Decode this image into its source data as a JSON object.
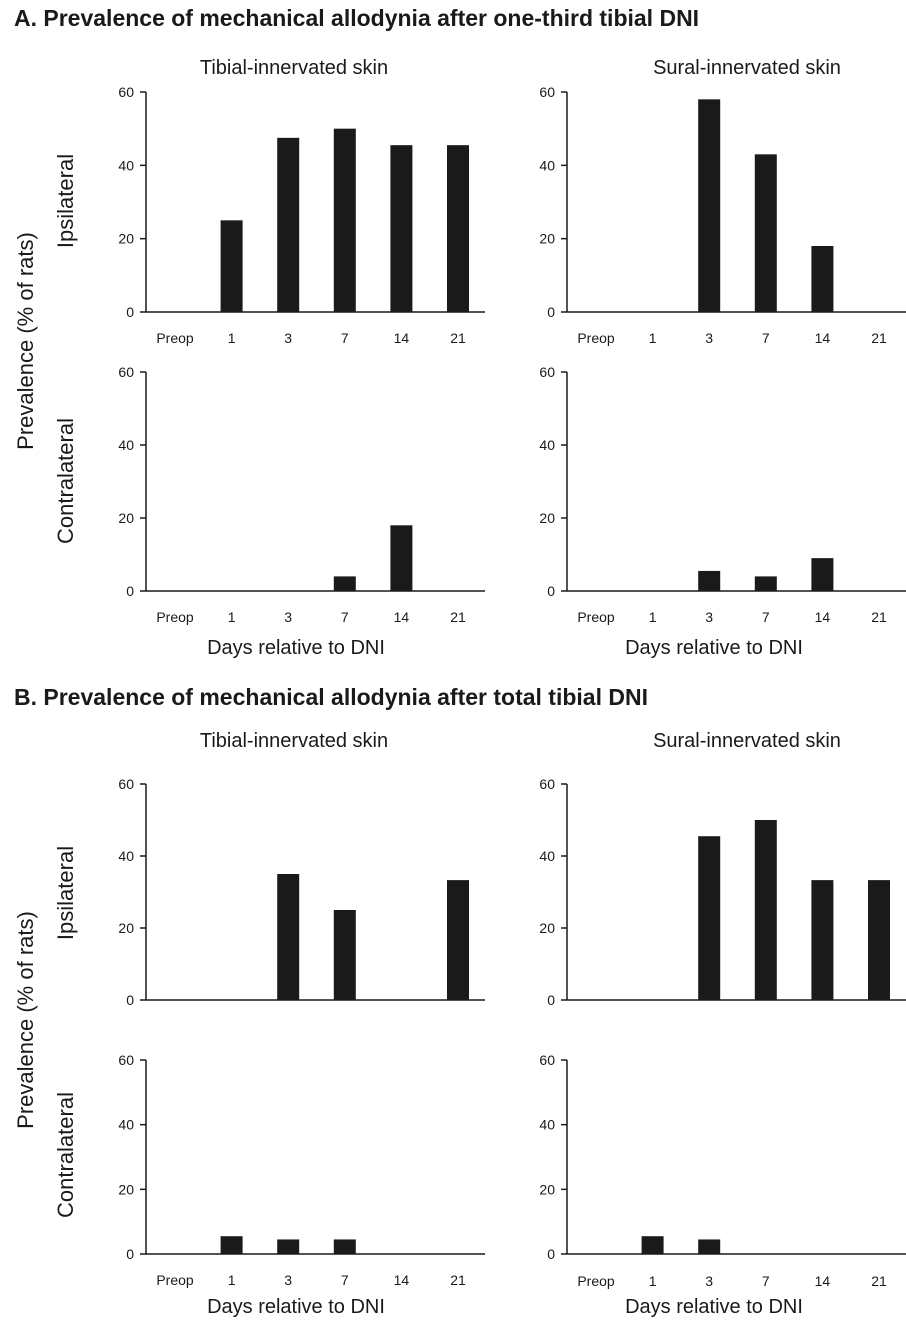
{
  "headings": {
    "a": "A.   Prevalence of mechanical allodynia after one-third tibial DNI",
    "b": "B.   Prevalence of mechanical allodynia after total tibial DNI"
  },
  "labels": {
    "col_left": "Tibial-innervated skin",
    "col_right": "Sural-innervated skin",
    "row_top": "Ipsilateral",
    "row_bottom": "Contralateral",
    "y_axis": "Prevalence (% of rats)",
    "x_axis": "Days relative to DNI"
  },
  "chart_data": [
    {
      "id": "A-tibial-ipsi",
      "type": "bar",
      "section": "A",
      "column": "Tibial-innervated skin",
      "row": "Ipsilateral",
      "categories": [
        "Preop",
        "1",
        "3",
        "7",
        "14",
        "21"
      ],
      "values": [
        0,
        25,
        47.5,
        50,
        45.5,
        45.5
      ],
      "ylim": [
        0,
        60
      ],
      "yticks": [
        0,
        20,
        40,
        60
      ],
      "xlabel": "",
      "ylabel": "Prevalence (% of rats)"
    },
    {
      "id": "A-sural-ipsi",
      "type": "bar",
      "section": "A",
      "column": "Sural-innervated skin",
      "row": "Ipsilateral",
      "categories": [
        "Preop",
        "1",
        "3",
        "7",
        "14",
        "21"
      ],
      "values": [
        0,
        0,
        58,
        43,
        18,
        0
      ],
      "ylim": [
        0,
        60
      ],
      "yticks": [
        0,
        20,
        40,
        60
      ],
      "xlabel": "",
      "ylabel": "Prevalence (% of rats)"
    },
    {
      "id": "A-tibial-contra",
      "type": "bar",
      "section": "A",
      "column": "Tibial-innervated skin",
      "row": "Contralateral",
      "categories": [
        "Preop",
        "1",
        "3",
        "7",
        "14",
        "21"
      ],
      "values": [
        0,
        0,
        0,
        4,
        18,
        0
      ],
      "ylim": [
        0,
        60
      ],
      "yticks": [
        0,
        20,
        40,
        60
      ],
      "xlabel": "Days relative to DNI",
      "ylabel": "Prevalence (% of rats)"
    },
    {
      "id": "A-sural-contra",
      "type": "bar",
      "section": "A",
      "column": "Sural-innervated skin",
      "row": "Contralateral",
      "categories": [
        "Preop",
        "1",
        "3",
        "7",
        "14",
        "21"
      ],
      "values": [
        0,
        0,
        5.5,
        4,
        9,
        0
      ],
      "ylim": [
        0,
        60
      ],
      "yticks": [
        0,
        20,
        40,
        60
      ],
      "xlabel": "Days relative to DNI",
      "ylabel": "Prevalence (% of rats)"
    },
    {
      "id": "B-tibial-ipsi",
      "type": "bar",
      "section": "B",
      "column": "Tibial-innervated skin",
      "row": "Ipsilateral",
      "categories": [
        "Preop",
        "1",
        "3",
        "7",
        "14",
        "21"
      ],
      "values": [
        0,
        0,
        35,
        25,
        0,
        33.3
      ],
      "ylim": [
        0,
        60
      ],
      "yticks": [
        0,
        20,
        40,
        60
      ],
      "xlabel": "",
      "ylabel": "Prevalence (% of rats)"
    },
    {
      "id": "B-sural-ipsi",
      "type": "bar",
      "section": "B",
      "column": "Sural-innervated skin",
      "row": "Ipsilateral",
      "categories": [
        "Preop",
        "1",
        "3",
        "7",
        "14",
        "21"
      ],
      "values": [
        0,
        0,
        45.5,
        50,
        33.3,
        33.3
      ],
      "ylim": [
        0,
        60
      ],
      "yticks": [
        0,
        20,
        40,
        60
      ],
      "xlabel": "",
      "ylabel": "Prevalence (% of rats)"
    },
    {
      "id": "B-tibial-contra",
      "type": "bar",
      "section": "B",
      "column": "Tibial-innervated skin",
      "row": "Contralateral",
      "categories": [
        "Preop",
        "1",
        "3",
        "7",
        "14",
        "21"
      ],
      "values": [
        0,
        5.5,
        4.5,
        4.5,
        0,
        0
      ],
      "ylim": [
        0,
        60
      ],
      "yticks": [
        0,
        20,
        40,
        60
      ],
      "xlabel": "Days relative to DNI",
      "ylabel": "Prevalence (% of rats)"
    },
    {
      "id": "B-sural-contra",
      "type": "bar",
      "section": "B",
      "column": "Sural-innervated skin",
      "row": "Contralateral",
      "categories": [
        "Preop",
        "1",
        "3",
        "7",
        "14",
        "21"
      ],
      "values": [
        0,
        5.5,
        4.5,
        0,
        0,
        0
      ],
      "ylim": [
        0,
        60
      ],
      "yticks": [
        0,
        20,
        40,
        60
      ],
      "xlabel": "Days relative to DNI",
      "ylabel": "Prevalence (% of rats)"
    }
  ]
}
